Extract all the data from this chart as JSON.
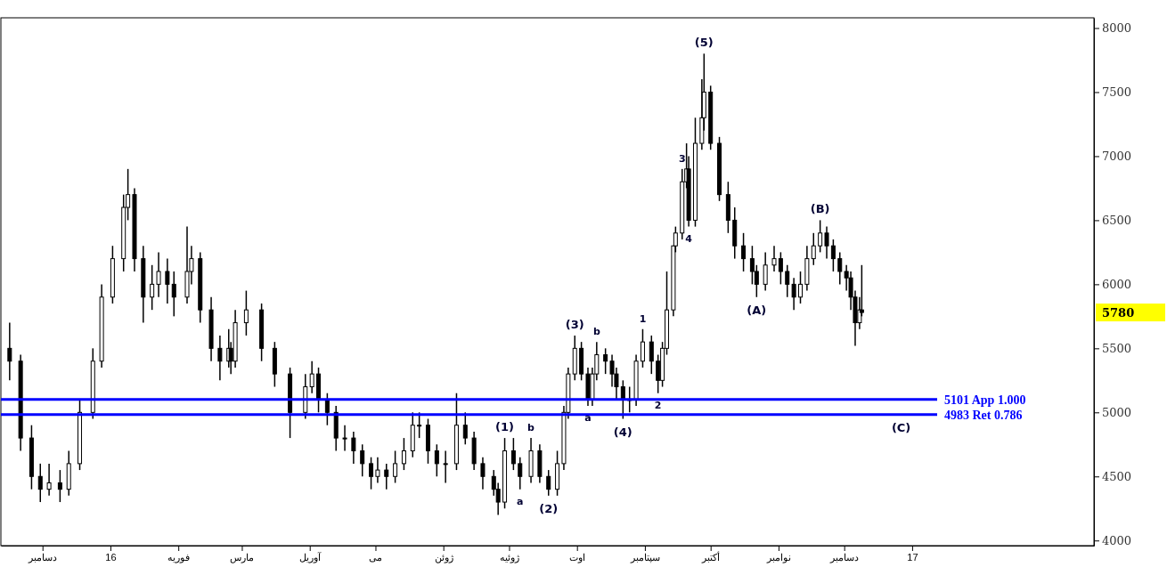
{
  "chart_data": {
    "type": "candlestick",
    "color": "#000000",
    "x": [
      "2015-11-16",
      "2015-11-21",
      "2015-11-26",
      "2015-11-30",
      "2015-12-04",
      "2015-12-09",
      "2015-12-13",
      "2015-12-18",
      "2015-12-24",
      "2015-12-28",
      "2016-01-02",
      "2016-01-07",
      "2016-01-09",
      "2016-01-12",
      "2016-01-16",
      "2016-01-20",
      "2016-01-23",
      "2016-01-27",
      "2016-01-30",
      "2016-02-05",
      "2016-02-07",
      "2016-02-11",
      "2016-02-16",
      "2016-02-20",
      "2016-02-24",
      "2016-02-25",
      "2016-02-27",
      "2016-03-03",
      "2016-03-10",
      "2016-03-16",
      "2016-03-23",
      "2016-03-30",
      "2016-04-02",
      "2016-04-05",
      "2016-04-09",
      "2016-04-13",
      "2016-04-17",
      "2016-04-21",
      "2016-04-25",
      "2016-04-29",
      "2016-05-02",
      "2016-05-06",
      "2016-05-10",
      "2016-05-14",
      "2016-05-18",
      "2016-05-21",
      "2016-05-25",
      "2016-05-29",
      "2016-06-02",
      "2016-06-07",
      "2016-06-11",
      "2016-06-15",
      "2016-06-19",
      "2016-06-24",
      "2016-06-26",
      "2016-06-29",
      "2016-07-03",
      "2016-07-06",
      "2016-07-11",
      "2016-07-15",
      "2016-07-19",
      "2016-07-23",
      "2016-07-26",
      "2016-07-28",
      "2016-07-31",
      "2016-08-03",
      "2016-08-06",
      "2016-08-08",
      "2016-08-10",
      "2016-08-14",
      "2016-08-17",
      "2016-08-19",
      "2016-08-22",
      "2016-08-25",
      "2016-08-28",
      "2016-08-31",
      "2016-09-04",
      "2016-09-07",
      "2016-09-09",
      "2016-09-11",
      "2016-09-14",
      "2016-09-15",
      "2016-09-18",
      "2016-09-20",
      "2016-09-21",
      "2016-09-24",
      "2016-09-27",
      "2016-09-28",
      "2016-10-01",
      "2016-10-05",
      "2016-10-09",
      "2016-10-12",
      "2016-10-16",
      "2016-10-20",
      "2016-10-22",
      "2016-10-26",
      "2016-10-30",
      "2016-11-02",
      "2016-11-05",
      "2016-11-08",
      "2016-11-11",
      "2016-11-14",
      "2016-11-17",
      "2016-11-20",
      "2016-11-23",
      "2016-11-26",
      "2016-11-29",
      "2016-12-02",
      "2016-12-04",
      "2016-12-06",
      "2016-12-08",
      "2016-12-09"
    ],
    "ohlc": [
      [
        5500,
        5700,
        5250,
        5400
      ],
      [
        5400,
        5450,
        4700,
        4800
      ],
      [
        4800,
        4900,
        4400,
        4500
      ],
      [
        4500,
        4600,
        4300,
        4400
      ],
      [
        4400,
        4600,
        4350,
        4450
      ],
      [
        4450,
        4550,
        4300,
        4400
      ],
      [
        4400,
        4700,
        4350,
        4600
      ],
      [
        4600,
        5100,
        4550,
        5000
      ],
      [
        5000,
        5500,
        4950,
        5400
      ],
      [
        5400,
        6000,
        5350,
        5900
      ],
      [
        5900,
        6300,
        5850,
        6200
      ],
      [
        6200,
        6700,
        6100,
        6600
      ],
      [
        6600,
        6900,
        6500,
        6700
      ],
      [
        6700,
        6750,
        6100,
        6200
      ],
      [
        6200,
        6300,
        5700,
        5900
      ],
      [
        5900,
        6150,
        5800,
        6000
      ],
      [
        6000,
        6250,
        5900,
        6100
      ],
      [
        6100,
        6200,
        5850,
        6000
      ],
      [
        6000,
        6100,
        5750,
        5900
      ],
      [
        5900,
        6450,
        5850,
        6100
      ],
      [
        6100,
        6300,
        6000,
        6200
      ],
      [
        6200,
        6250,
        5700,
        5800
      ],
      [
        5800,
        5900,
        5400,
        5500
      ],
      [
        5500,
        5600,
        5250,
        5400
      ],
      [
        5400,
        5650,
        5350,
        5500
      ],
      [
        5500,
        5550,
        5300,
        5400
      ],
      [
        5400,
        5800,
        5350,
        5700
      ],
      [
        5700,
        5950,
        5600,
        5800
      ],
      [
        5800,
        5850,
        5400,
        5500
      ],
      [
        5500,
        5550,
        5200,
        5300
      ],
      [
        5300,
        5350,
        4800,
        5000
      ],
      [
        5000,
        5300,
        4950,
        5200
      ],
      [
        5200,
        5400,
        5150,
        5300
      ],
      [
        5300,
        5350,
        5000,
        5100
      ],
      [
        5100,
        5150,
        4900,
        5000
      ],
      [
        5000,
        5050,
        4700,
        4800
      ],
      [
        4800,
        4900,
        4700,
        4800
      ],
      [
        4800,
        4850,
        4600,
        4700
      ],
      [
        4700,
        4750,
        4500,
        4600
      ],
      [
        4600,
        4650,
        4400,
        4500
      ],
      [
        4500,
        4650,
        4450,
        4550
      ],
      [
        4550,
        4600,
        4400,
        4500
      ],
      [
        4500,
        4700,
        4450,
        4600
      ],
      [
        4600,
        4800,
        4550,
        4700
      ],
      [
        4700,
        5000,
        4650,
        4900
      ],
      [
        4900,
        5000,
        4800,
        4900
      ],
      [
        4900,
        4950,
        4600,
        4700
      ],
      [
        4700,
        4750,
        4500,
        4600
      ],
      [
        4600,
        4700,
        4450,
        4600
      ],
      [
        4600,
        5150,
        4550,
        4900
      ],
      [
        4900,
        5000,
        4750,
        4800
      ],
      [
        4800,
        4850,
        4550,
        4600
      ],
      [
        4600,
        4650,
        4400,
        4500
      ],
      [
        4500,
        4550,
        4350,
        4400
      ],
      [
        4400,
        4450,
        4200,
        4300
      ],
      [
        4300,
        4800,
        4250,
        4700
      ],
      [
        4700,
        4800,
        4550,
        4600
      ],
      [
        4600,
        4650,
        4400,
        4500
      ],
      [
        4500,
        4800,
        4450,
        4700
      ],
      [
        4700,
        4750,
        4450,
        4500
      ],
      [
        4500,
        4550,
        4350,
        4400
      ],
      [
        4400,
        4700,
        4350,
        4600
      ],
      [
        4600,
        5050,
        4550,
        5000
      ],
      [
        5000,
        5350,
        4950,
        5300
      ],
      [
        5300,
        5600,
        5250,
        5500
      ],
      [
        5500,
        5550,
        5250,
        5300
      ],
      [
        5300,
        5350,
        5050,
        5100
      ],
      [
        5100,
        5350,
        5050,
        5300
      ],
      [
        5300,
        5550,
        5250,
        5450
      ],
      [
        5450,
        5500,
        5300,
        5400
      ],
      [
        5400,
        5450,
        5200,
        5300
      ],
      [
        5300,
        5350,
        5100,
        5200
      ],
      [
        5200,
        5250,
        4950,
        5100
      ],
      [
        5100,
        5200,
        5000,
        5100
      ],
      [
        5100,
        5450,
        5050,
        5400
      ],
      [
        5400,
        5650,
        5350,
        5550
      ],
      [
        5550,
        5600,
        5300,
        5400
      ],
      [
        5400,
        5450,
        5150,
        5250
      ],
      [
        5250,
        5550,
        5200,
        5500
      ],
      [
        5500,
        6100,
        5450,
        5800
      ],
      [
        5800,
        6300,
        5750,
        6300
      ],
      [
        6300,
        6450,
        6250,
        6400
      ],
      [
        6400,
        6900,
        6350,
        6800
      ],
      [
        6800,
        7100,
        6750,
        6900
      ],
      [
        6900,
        7000,
        6450,
        6500
      ],
      [
        6500,
        7300,
        6450,
        7100
      ],
      [
        7100,
        7600,
        7050,
        7300
      ],
      [
        7300,
        7800,
        7200,
        7500
      ],
      [
        7500,
        7550,
        7050,
        7100
      ],
      [
        7100,
        7150,
        6650,
        6700
      ],
      [
        6700,
        6800,
        6400,
        6500
      ],
      [
        6500,
        6600,
        6200,
        6300
      ],
      [
        6300,
        6400,
        6100,
        6200
      ],
      [
        6200,
        6300,
        6000,
        6100
      ],
      [
        6100,
        6150,
        5900,
        6000
      ],
      [
        6000,
        6250,
        5950,
        6150
      ],
      [
        6150,
        6300,
        6100,
        6200
      ],
      [
        6200,
        6250,
        6000,
        6100
      ],
      [
        6100,
        6150,
        5900,
        6000
      ],
      [
        6000,
        6050,
        5800,
        5900
      ],
      [
        5900,
        6100,
        5850,
        6000
      ],
      [
        6000,
        6300,
        5950,
        6200
      ],
      [
        6200,
        6400,
        6150,
        6300
      ],
      [
        6300,
        6500,
        6250,
        6400
      ],
      [
        6400,
        6450,
        6200,
        6300
      ],
      [
        6300,
        6350,
        6100,
        6200
      ],
      [
        6200,
        6250,
        6000,
        6100
      ],
      [
        6100,
        6150,
        5950,
        6050
      ],
      [
        6050,
        6100,
        5800,
        5900
      ],
      [
        5900,
        5950,
        5520,
        5700
      ],
      [
        5700,
        5900,
        5650,
        5800
      ],
      [
        5800,
        6150,
        5750,
        5780
      ]
    ],
    "xlim": [
      "2015-11-12",
      "2017-03-25"
    ],
    "xticks": [
      {
        "value": "2015-12-01",
        "label": "دسامبر"
      },
      {
        "value": "2016-01-01",
        "label": "16"
      },
      {
        "value": "2016-02-01",
        "label": "فوریه"
      },
      {
        "value": "2016-03-01",
        "label": "مارس"
      },
      {
        "value": "2016-04-01",
        "label": "آوریل"
      },
      {
        "value": "2016-05-01",
        "label": "می"
      },
      {
        "value": "2016-06-01",
        "label": "ژوئن"
      },
      {
        "value": "2016-07-01",
        "label": "ژوئیه"
      },
      {
        "value": "2016-08-01",
        "label": "اوت"
      },
      {
        "value": "2016-09-01",
        "label": "سپتامبر"
      },
      {
        "value": "2016-10-01",
        "label": "أکتبر"
      },
      {
        "value": "2016-11-01",
        "label": "نوامبر"
      },
      {
        "value": "2016-12-01",
        "label": "دسامبر"
      },
      {
        "value": "2017-01-01",
        "label": "17"
      }
    ],
    "ylim": [
      3960,
      8080
    ],
    "yticks": [
      4000,
      4500,
      5000,
      5500,
      6000,
      6500,
      7000,
      7500,
      8000
    ],
    "ref_lines": [
      {
        "axis": "y",
        "value": 5101,
        "label": "5101 App 1.000",
        "color": "#0000ff"
      },
      {
        "axis": "y",
        "value": 4983,
        "label": "4983 Ret 0.786",
        "color": "#0000ff"
      }
    ],
    "annotations": [
      {
        "text": "(1)",
        "x": "2016-06-29",
        "y": 4800
      },
      {
        "text": "a",
        "x": "2016-07-06",
        "y": 4400
      },
      {
        "text": "b",
        "x": "2016-07-11",
        "y": 4800
      },
      {
        "text": "(2)",
        "x": "2016-07-19",
        "y": 4350
      },
      {
        "text": "(3)",
        "x": "2016-07-31",
        "y": 5600
      },
      {
        "text": "a",
        "x": "2016-08-06",
        "y": 5050
      },
      {
        "text": "b",
        "x": "2016-08-10",
        "y": 5550
      },
      {
        "text": "(4)",
        "x": "2016-08-22",
        "y": 4950
      },
      {
        "text": "1",
        "x": "2016-08-31",
        "y": 5650
      },
      {
        "text": "2",
        "x": "2016-09-07",
        "y": 5150
      },
      {
        "text": "3",
        "x": "2016-09-18",
        "y": 6900
      },
      {
        "text": "4",
        "x": "2016-09-21",
        "y": 6450
      },
      {
        "text": "(5)",
        "x": "2016-09-28",
        "y": 7800
      },
      {
        "text": "(A)",
        "x": "2016-10-22",
        "y": 5900
      },
      {
        "text": "(B)",
        "x": "2016-11-20",
        "y": 6500
      },
      {
        "text": "(C)",
        "x": "2016-12-27",
        "y": 4983
      },
      "5780"
    ],
    "grid": false
  }
}
